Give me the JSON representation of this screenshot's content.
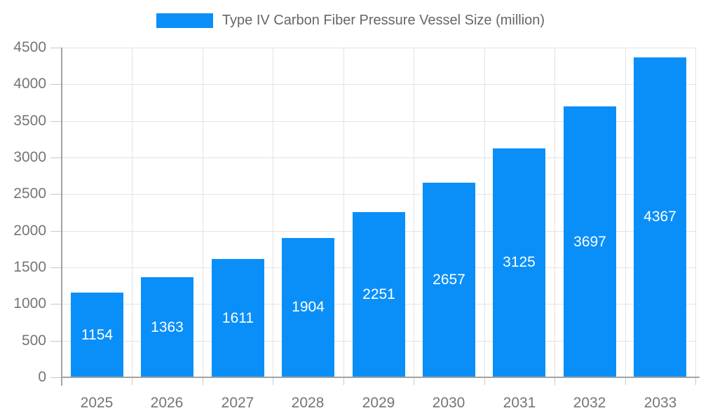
{
  "legend": {
    "series_label": "Type IV Carbon Fiber Pressure Vessel Size (million)"
  },
  "chart_data": {
    "type": "bar",
    "title": "Type IV Carbon Fiber Pressure Vessel Size (million)",
    "categories": [
      "2025",
      "2026",
      "2027",
      "2028",
      "2029",
      "2030",
      "2031",
      "2032",
      "2033"
    ],
    "values": [
      1154,
      1363,
      1611,
      1904,
      2251,
      2657,
      3125,
      3697,
      4367
    ],
    "xlabel": "",
    "ylabel": "",
    "ylim": [
      0,
      4500
    ],
    "ytick_step": 500,
    "yticks": [
      0,
      500,
      1000,
      1500,
      2000,
      2500,
      3000,
      3500,
      4000,
      4500
    ],
    "grid": true,
    "legend_position": "top",
    "bar_labels_inside": "centered",
    "colors": {
      "bar": "#0a8ff9",
      "bar_label": "#ffffff",
      "axis_text": "#757575",
      "legend_text": "#666666",
      "gridline": "#e3e3e3",
      "tick": "#c9c9c9",
      "axis_line": "#a3a3a3",
      "background": "#ffffff"
    }
  }
}
